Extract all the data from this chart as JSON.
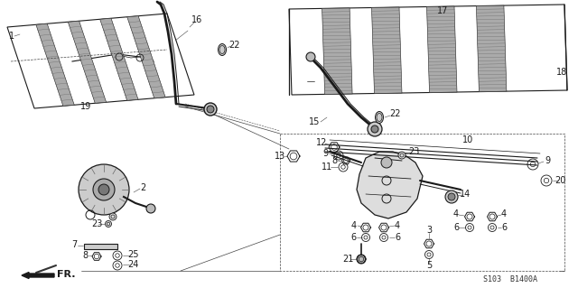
{
  "bg_color": "#ffffff",
  "dc": "#1a1a1a",
  "lc": "#444444",
  "ref_code": "S103  B1400A",
  "fr_label": "FR.",
  "font_size": 7
}
